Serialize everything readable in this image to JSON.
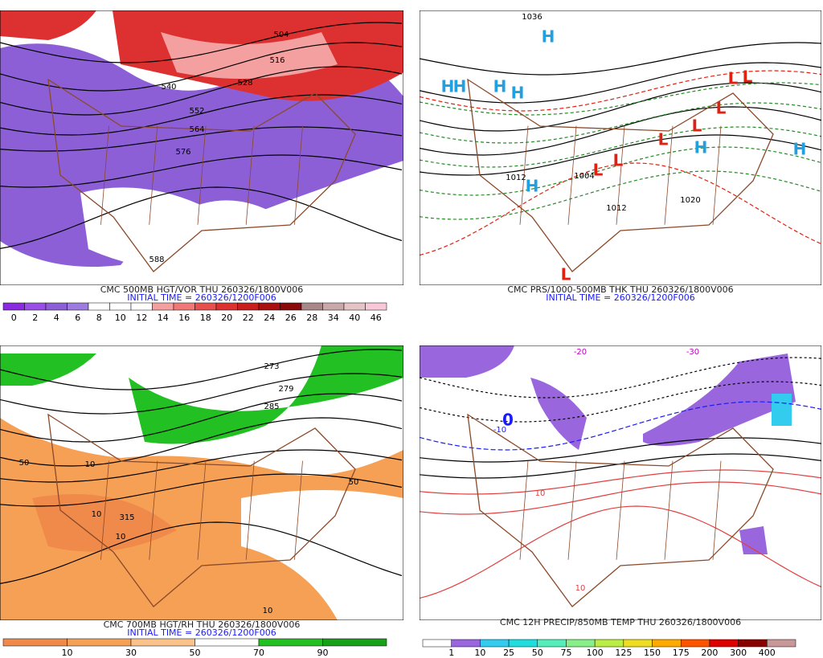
{
  "panels": [
    {
      "title": "CMC 500MB HGT/VOR THU 260326/1800V006",
      "initial_time": "INITIAL TIME = 260326/1200F006",
      "colorbar": {
        "colors": [
          "#8a2be2",
          "#9a4ee8",
          "#8c5fd6",
          "#9d7be0",
          "#ffffff",
          "#ffffff",
          "#ffffff",
          "#f4a0a0",
          "#f07878",
          "#e85050",
          "#dd3030",
          "#c81e1e",
          "#aa1010",
          "#8a0a0a",
          "#a88888",
          "#c8a8a8",
          "#e4c4c4",
          "#f8c8d8"
        ],
        "labels": [
          "0",
          "2",
          "4",
          "6",
          "8",
          "10",
          "12",
          "14",
          "16",
          "18",
          "20",
          "22",
          "24",
          "26",
          "28",
          "34",
          "40",
          "46"
        ]
      },
      "map_labels": [
        {
          "text": "504",
          "color": "#000"
        },
        {
          "text": "516",
          "color": "#000"
        },
        {
          "text": "528",
          "color": "#000"
        },
        {
          "text": "540",
          "color": "#000"
        },
        {
          "text": "552",
          "color": "#000"
        },
        {
          "text": "564",
          "color": "#000"
        },
        {
          "text": "576",
          "color": "#000"
        },
        {
          "text": "588",
          "color": "#000"
        }
      ]
    },
    {
      "title": "CMC PRS/1000-500MB THK THU 260326/1800V006",
      "initial_time": "INITIAL TIME = 260326/1200F006",
      "map_labels": [
        {
          "text": "H",
          "color": "#1fa0e0"
        },
        {
          "text": "H",
          "color": "#1fa0e0"
        },
        {
          "text": "H",
          "color": "#1fa0e0"
        },
        {
          "text": "H",
          "color": "#1fa0e0"
        },
        {
          "text": "H",
          "color": "#1fa0e0"
        },
        {
          "text": "H",
          "color": "#1fa0e0"
        },
        {
          "text": "H",
          "color": "#1fa0e0"
        },
        {
          "text": "H",
          "color": "#1fa0e0"
        },
        {
          "text": "L",
          "color": "#e02010"
        },
        {
          "text": "L",
          "color": "#e02010"
        },
        {
          "text": "L",
          "color": "#e02010"
        },
        {
          "text": "L",
          "color": "#e02010"
        },
        {
          "text": "L",
          "color": "#e02010"
        },
        {
          "text": "L",
          "color": "#e02010"
        },
        {
          "text": "L",
          "color": "#e02010"
        },
        {
          "text": "L",
          "color": "#e02010"
        },
        {
          "text": "1036",
          "color": "#000"
        },
        {
          "text": "1012",
          "color": "#000"
        },
        {
          "text": "1004",
          "color": "#000"
        },
        {
          "text": "1020",
          "color": "#000"
        },
        {
          "text": "1012",
          "color": "#000"
        }
      ]
    },
    {
      "title": "CMC 700MB HGT/RH THU 260326/1800V006",
      "initial_time": "INITIAL TIME = 260326/1200F006",
      "colorbar": {
        "colors": [
          "#f08a4a",
          "#f5a055",
          "#fbc28a",
          "#ffffff",
          "#22c022",
          "#18a018"
        ],
        "labels": [
          "10",
          "30",
          "50",
          "70",
          "90"
        ]
      },
      "map_labels": [
        {
          "text": "273",
          "color": "#000"
        },
        {
          "text": "279",
          "color": "#000"
        },
        {
          "text": "285",
          "color": "#000"
        },
        {
          "text": "50",
          "color": "#000"
        },
        {
          "text": "10",
          "color": "#000"
        },
        {
          "text": "10",
          "color": "#000"
        },
        {
          "text": "315",
          "color": "#000"
        },
        {
          "text": "10",
          "color": "#000"
        },
        {
          "text": "50",
          "color": "#000"
        },
        {
          "text": "10",
          "color": "#000"
        }
      ]
    },
    {
      "title": "CMC 12H PRECIP/850MB TEMP THU 260326/1800V006",
      "colorbar": {
        "colors": [
          "#ffffff",
          "#9966dd",
          "#33ccee",
          "#22dddd",
          "#55eebb",
          "#88ee88",
          "#bbee44",
          "#eedd22",
          "#ffaa00",
          "#ff5500",
          "#dd0000",
          "#880000",
          "#c89898"
        ],
        "labels": [
          "1",
          "10",
          "25",
          "50",
          "75",
          "100",
          "125",
          "150",
          "175",
          "200",
          "300",
          "400"
        ]
      },
      "map_labels": [
        {
          "text": "-30",
          "color": "#c000c0"
        },
        {
          "text": "-20",
          "color": "#c000c0"
        },
        {
          "text": "-10",
          "color": "#1a1aff"
        },
        {
          "text": "0",
          "color": "#1a1aff"
        },
        {
          "text": "10",
          "color": "#e04040"
        },
        {
          "text": "10",
          "color": "#e04040"
        }
      ]
    }
  ]
}
